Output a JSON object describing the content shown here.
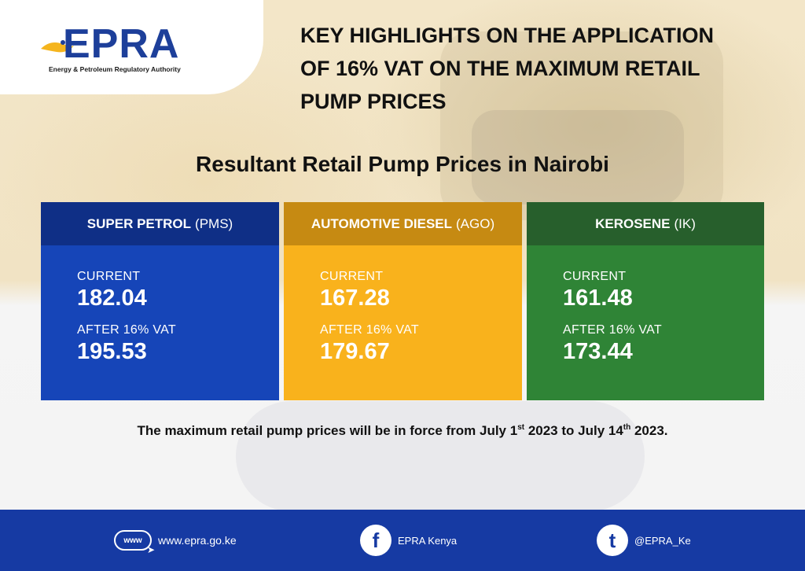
{
  "logo": {
    "name": "EPRA",
    "tagline": "Energy & Petroleum Regulatory Authority"
  },
  "headline": {
    "line1": "KEY HIGHLIGHTS ON THE APPLICATION",
    "line2": "OF 16% VAT ON THE MAXIMUM RETAIL",
    "line3": "PUMP PRICES"
  },
  "subtitle": "Resultant Retail Pump Prices in Nairobi",
  "products": [
    {
      "name": "SUPER PETROL",
      "code": "(PMS)",
      "current_label": "CURRENT",
      "current_value": "182.04",
      "after_label": "AFTER 16% VAT",
      "after_value": "195.53",
      "color": "#1645b8",
      "header_color": "#0f2f86"
    },
    {
      "name": "AUTOMOTIVE DIESEL",
      "code": "(AGO)",
      "current_label": "CURRENT",
      "current_value": "167.28",
      "after_label": "AFTER 16% VAT",
      "after_value": "179.67",
      "color": "#f9b21c",
      "header_color": "#c68a12"
    },
    {
      "name": "KEROSENE",
      "code": "(IK)",
      "current_label": "CURRENT",
      "current_value": "161.48",
      "after_label": "AFTER 16% VAT",
      "after_value": "173.44",
      "color": "#2f8436",
      "header_color": "#275f2c"
    }
  ],
  "note": {
    "part1": "The maximum retail pump prices will be in force from July 1",
    "sup1": "st",
    "part2": " 2023 to July 14",
    "sup2": "th",
    "part3": " 2023."
  },
  "footer": {
    "website_icon": "www",
    "website": "www.epra.go.ke",
    "facebook_icon": "f",
    "facebook": "EPRA Kenya",
    "twitter_icon": "t",
    "twitter": "@EPRA_Ke",
    "color": "#163aa3"
  }
}
